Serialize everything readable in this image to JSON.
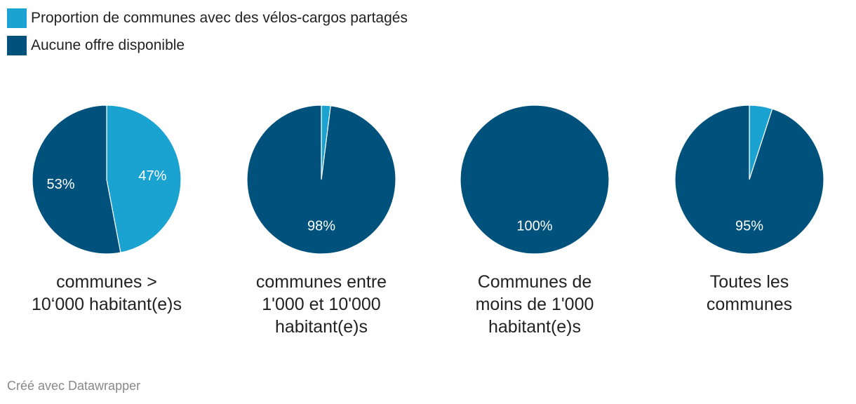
{
  "legend": {
    "items": [
      {
        "label": "Proportion de communes avec des vélos-cargos partagés",
        "color": "#1aa3d1"
      },
      {
        "label": "Aucune offre disponible",
        "color": "#00527c"
      }
    ]
  },
  "chart_data": {
    "type": "pie",
    "series_names": [
      "Proportion de communes avec des vélos-cargos partagés",
      "Aucune offre disponible"
    ],
    "colors": [
      "#1aa3d1",
      "#00527c"
    ],
    "pies": [
      {
        "category": [
          "communes >",
          "10‘000 habitant(e)s"
        ],
        "values": [
          47,
          53
        ],
        "labels": [
          "47%",
          "53%"
        ]
      },
      {
        "category": [
          "communes entre",
          "1'000 et 10'000",
          "habitant(e)s"
        ],
        "values": [
          2,
          98
        ],
        "labels": [
          "",
          "98%"
        ]
      },
      {
        "category": [
          "Communes de",
          "moins de 1'000",
          "habitant(e)s"
        ],
        "values": [
          0,
          100
        ],
        "labels": [
          "",
          "100%"
        ]
      },
      {
        "category": [
          "Toutes les",
          "communes"
        ],
        "values": [
          5,
          95
        ],
        "labels": [
          "",
          "95%"
        ]
      }
    ]
  },
  "footer": {
    "credit": "Créé avec Datawrapper"
  }
}
